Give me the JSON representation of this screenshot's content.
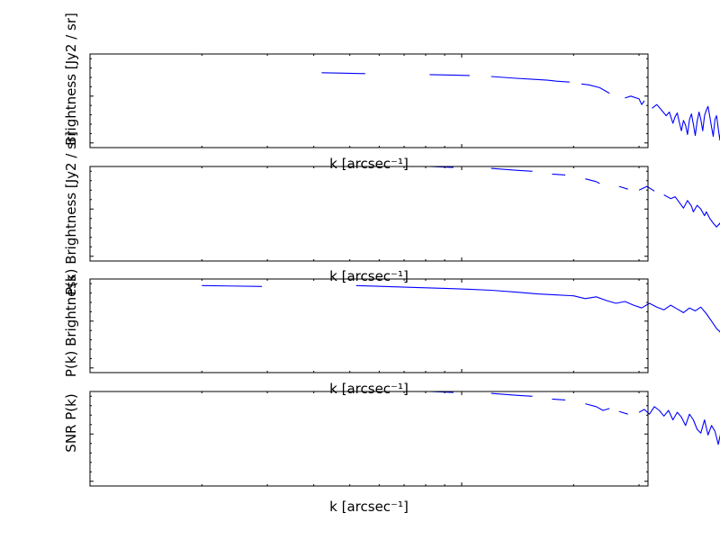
{
  "chart_data": [
    {
      "type": "line",
      "xlabel": "k [arcsec⁻¹]",
      "ylabel": "Brightness [Jy2 / sr]",
      "xscale": "log",
      "yscale": "log",
      "grid": false,
      "series": [
        {
          "color": "#0000ff",
          "segments": [
            {
              "x": [
                0.42,
                0.55
              ],
              "y": [
                0.8,
                0.79
              ]
            },
            {
              "x": [
                0.82,
                1.05
              ],
              "y": [
                0.78,
                0.77
              ]
            },
            {
              "x": [
                1.2,
                1.4,
                1.55,
                1.7,
                1.8,
                1.95
              ],
              "y": [
                0.76,
                0.74,
                0.73,
                0.72,
                0.71,
                0.7
              ]
            },
            {
              "x": [
                2.1,
                2.2,
                2.35,
                2.45,
                2.5
              ],
              "y": [
                0.68,
                0.67,
                0.64,
                0.6,
                0.58
              ]
            },
            {
              "x": [
                2.75,
                2.85,
                3.0,
                3.05,
                3.1
              ],
              "y": [
                0.53,
                0.55,
                0.52,
                0.46,
                0.5
              ]
            },
            {
              "x": [
                3.25,
                3.35,
                3.45,
                3.55,
                3.62,
                3.7,
                3.75,
                3.8,
                3.85,
                3.9,
                3.95,
                4.0,
                4.05,
                4.1,
                4.15,
                4.2,
                4.25,
                4.3,
                4.35,
                4.4,
                4.45,
                4.5,
                4.55,
                4.6,
                4.65,
                4.7,
                4.75,
                4.8,
                4.85,
                4.9,
                4.95,
                5.0,
                5.05,
                5.1,
                5.15,
                5.2,
                5.25,
                5.3
              ],
              "y": [
                0.42,
                0.46,
                0.4,
                0.34,
                0.38,
                0.26,
                0.33,
                0.37,
                0.27,
                0.18,
                0.29,
                0.24,
                0.14,
                0.3,
                0.36,
                0.25,
                0.13,
                0.28,
                0.38,
                0.3,
                0.18,
                0.34,
                0.4,
                0.44,
                0.33,
                0.22,
                0.12,
                0.3,
                0.34,
                0.2,
                0.08,
                0.28,
                0.22,
                0.12,
                0.18,
                0.08,
                0.14,
                0.07
              ]
            },
            {
              "x": [
                5.55,
                5.65
              ],
              "y": [
                0.07,
                0.12
              ]
            },
            {
              "x": [
                5.85,
                6.0
              ],
              "y": [
                0.03,
                0.1
              ]
            }
          ]
        }
      ]
    },
    {
      "type": "line",
      "xlabel": "k [arcsec⁻¹]",
      "ylabel": "P(k) Brightness [Jy2 / sr]",
      "xscale": "log",
      "yscale": "log",
      "grid": false,
      "series": [
        {
          "color": "#0000ff",
          "segments": [
            {
              "x": [
                0.82,
                0.95
              ],
              "y": [
                1.0,
                0.99
              ]
            },
            {
              "x": [
                1.2,
                1.4,
                1.55
              ],
              "y": [
                0.98,
                0.96,
                0.95
              ]
            },
            {
              "x": [
                1.75,
                1.9
              ],
              "y": [
                0.92,
                0.91
              ]
            },
            {
              "x": [
                2.15,
                2.3,
                2.35
              ],
              "y": [
                0.87,
                0.84,
                0.82
              ]
            },
            {
              "x": [
                2.65,
                2.8
              ],
              "y": [
                0.79,
                0.76
              ]
            },
            {
              "x": [
                3.0,
                3.15,
                3.3
              ],
              "y": [
                0.75,
                0.79,
                0.74
              ]
            },
            {
              "x": [
                3.5,
                3.65,
                3.75,
                3.85,
                3.95,
                4.05,
                4.15,
                4.2,
                4.3,
                4.4,
                4.5,
                4.55,
                4.65,
                4.75,
                4.85,
                4.95,
                5.05,
                5.15,
                5.25,
                5.35,
                5.45,
                5.55,
                5.65,
                5.75,
                5.85,
                5.95
              ],
              "y": [
                0.7,
                0.66,
                0.68,
                0.62,
                0.56,
                0.64,
                0.58,
                0.52,
                0.59,
                0.55,
                0.48,
                0.52,
                0.45,
                0.4,
                0.36,
                0.4,
                0.33,
                0.28,
                0.32,
                0.25,
                0.3,
                0.22,
                0.26,
                0.18,
                0.22,
                0.16
              ]
            },
            {
              "x": [
                6.15,
                6.3
              ],
              "y": [
                0.1,
                0.14
              ]
            }
          ]
        }
      ]
    },
    {
      "type": "line",
      "xlabel": "k [arcsec⁻¹]",
      "ylabel": "P(k) Brightness",
      "xscale": "log",
      "yscale": "log",
      "grid": false,
      "series": [
        {
          "color": "#0000ff",
          "segments": [
            {
              "x": [
                0.2,
                0.29
              ],
              "y": [
                0.93,
                0.92
              ]
            },
            {
              "x": [
                0.52,
                0.62,
                0.75,
                0.9,
                1.05,
                1.2,
                1.4,
                1.6,
                1.8,
                2.0,
                2.15,
                2.3,
                2.45,
                2.6,
                2.75,
                2.9,
                3.05,
                3.2,
                3.35,
                3.5,
                3.65,
                3.8,
                3.95,
                4.1,
                4.25,
                4.4,
                4.55,
                4.7,
                4.85,
                5.0,
                5.15,
                5.3,
                5.45,
                5.55,
                5.65,
                5.75
              ],
              "y": [
                0.93,
                0.92,
                0.91,
                0.9,
                0.89,
                0.88,
                0.86,
                0.84,
                0.83,
                0.82,
                0.79,
                0.81,
                0.77,
                0.74,
                0.76,
                0.72,
                0.69,
                0.74,
                0.7,
                0.67,
                0.72,
                0.68,
                0.64,
                0.69,
                0.66,
                0.7,
                0.63,
                0.55,
                0.47,
                0.42,
                0.37,
                0.31,
                0.34,
                0.27,
                0.34,
                0.24
              ]
            },
            {
              "x": [
                6.1,
                6.3
              ],
              "y": [
                0.14,
                0.08
              ]
            }
          ]
        }
      ]
    },
    {
      "type": "line",
      "xlabel": "k [arcsec⁻¹]",
      "ylabel": "SNR  P(k)",
      "xscale": "log",
      "yscale": "log",
      "grid": false,
      "series": [
        {
          "color": "#0000ff",
          "segments": [
            {
              "x": [
                0.82,
                0.95
              ],
              "y": [
                1.0,
                0.99
              ]
            },
            {
              "x": [
                1.2,
                1.4,
                1.55
              ],
              "y": [
                0.98,
                0.96,
                0.95
              ]
            },
            {
              "x": [
                1.75,
                1.9
              ],
              "y": [
                0.92,
                0.91
              ]
            },
            {
              "x": [
                2.15,
                2.3,
                2.4,
                2.5
              ],
              "y": [
                0.87,
                0.84,
                0.8,
                0.82
              ]
            },
            {
              "x": [
                2.65,
                2.8
              ],
              "y": [
                0.79,
                0.76
              ]
            },
            {
              "x": [
                3.0,
                3.1,
                3.2,
                3.3,
                3.4,
                3.5,
                3.6,
                3.7,
                3.8,
                3.9,
                4.0,
                4.1,
                4.2,
                4.3,
                4.4,
                4.5,
                4.6,
                4.7,
                4.8,
                4.9,
                5.0,
                5.1,
                5.2,
                5.3,
                5.4,
                5.5,
                5.6,
                5.7,
                5.8,
                5.9,
                6.0
              ],
              "y": [
                0.78,
                0.81,
                0.76,
                0.84,
                0.8,
                0.74,
                0.8,
                0.7,
                0.78,
                0.73,
                0.64,
                0.76,
                0.7,
                0.6,
                0.56,
                0.7,
                0.54,
                0.64,
                0.58,
                0.44,
                0.6,
                0.66,
                0.5,
                0.42,
                0.6,
                0.4,
                0.32,
                0.44,
                0.3,
                0.36,
                0.29
              ]
            },
            {
              "x": [
                6.1,
                6.3
              ],
              "y": [
                0.24,
                0.3
              ]
            }
          ]
        }
      ]
    }
  ]
}
